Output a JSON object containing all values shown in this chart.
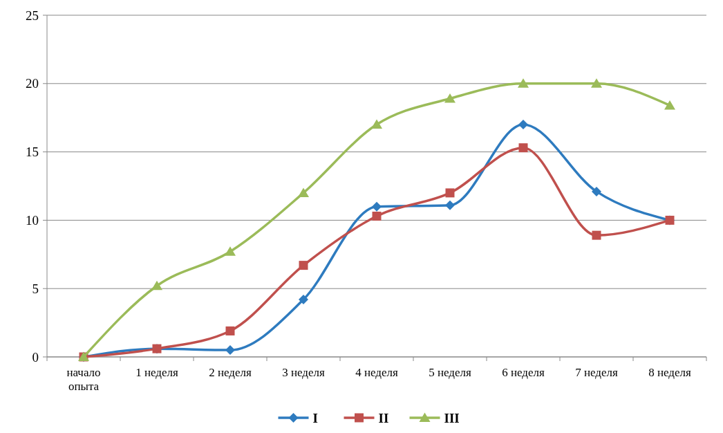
{
  "chart_data": {
    "type": "line",
    "categories": [
      "начало опыта",
      "1 неделя",
      "2 неделя",
      "3 неделя",
      "4 неделя",
      "5 неделя",
      "6 неделя",
      "7 неделя",
      "8 неделя"
    ],
    "series": [
      {
        "name": "I",
        "color": "#2e7bbf",
        "marker": "diamond",
        "values": [
          0,
          0.6,
          0.5,
          4.2,
          11,
          11.1,
          17,
          12.1,
          10
        ]
      },
      {
        "name": "II",
        "color": "#c0504d",
        "marker": "square",
        "values": [
          0,
          0.6,
          1.9,
          6.7,
          10.3,
          12,
          15.3,
          8.9,
          10
        ]
      },
      {
        "name": "III",
        "color": "#9bbb59",
        "marker": "triangle",
        "values": [
          0,
          5.2,
          7.7,
          12,
          17,
          18.9,
          20,
          20,
          18.4
        ]
      }
    ],
    "ylim": [
      0,
      25
    ],
    "yticks": [
      0,
      5,
      10,
      15,
      20,
      25
    ],
    "grid": "y",
    "legend": "bottom",
    "line_style": "solid"
  }
}
